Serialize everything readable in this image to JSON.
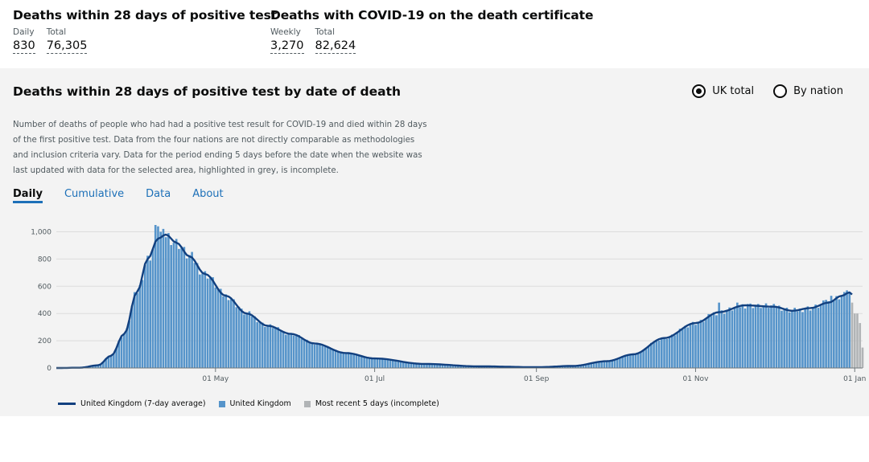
{
  "headlines": {
    "deaths28": {
      "title": "Deaths within 28 days of positive test",
      "daily_label": "Daily",
      "daily_value": "830",
      "total_label": "Total",
      "total_value": "76,305"
    },
    "certificate": {
      "title": "Deaths with COVID-19 on the death certificate",
      "weekly_label": "Weekly",
      "weekly_value": "3,270",
      "total_label": "Total",
      "total_value": "82,624"
    }
  },
  "card": {
    "title": "Deaths within 28 days of positive test by date of death",
    "radio_uk": "UK total",
    "radio_nation": "By nation",
    "description": "Number of deaths of people who had had a positive test result for COVID-19 and died within 28 days of the first positive test. Data from the four nations are not directly comparable as methodologies and inclusion criteria vary. Data for the period ending 5 days before the date when the website was last updated with data for the selected area, highlighted in grey, is incomplete.",
    "tabs": [
      "Daily",
      "Cumulative",
      "Data",
      "About"
    ],
    "active_tab": "Daily"
  },
  "colors": {
    "bar": "#5694ca",
    "line": "#12407f",
    "incomplete": "#b1b4b6",
    "link": "#1d70b8"
  },
  "chart_data": {
    "type": "bar",
    "start_date": "2020-03-01",
    "end_date": "2021-01-04",
    "y_ticks": [
      0,
      200,
      400,
      600,
      800,
      1000
    ],
    "y_tick_labels": [
      "0",
      "200",
      "400",
      "600",
      "800",
      "1,000"
    ],
    "ylim": [
      0,
      1050
    ],
    "x_ticks": [
      {
        "date": "2020-05-01",
        "label": "01 May"
      },
      {
        "date": "2020-07-01",
        "label": "01 Jul"
      },
      {
        "date": "2020-09-01",
        "label": "01 Sep"
      },
      {
        "date": "2020-11-01",
        "label": "01 Nov"
      },
      {
        "date": "2021-01-01",
        "label": "01 Jan"
      }
    ],
    "average_keypoints": [
      {
        "date": "2020-03-01",
        "value": 0
      },
      {
        "date": "2020-03-10",
        "value": 2
      },
      {
        "date": "2020-03-17",
        "value": 20
      },
      {
        "date": "2020-03-22",
        "value": 90
      },
      {
        "date": "2020-03-27",
        "value": 250
      },
      {
        "date": "2020-04-01",
        "value": 560
      },
      {
        "date": "2020-04-05",
        "value": 800
      },
      {
        "date": "2020-04-09",
        "value": 950
      },
      {
        "date": "2020-04-12",
        "value": 980
      },
      {
        "date": "2020-04-16",
        "value": 920
      },
      {
        "date": "2020-04-21",
        "value": 820
      },
      {
        "date": "2020-04-27",
        "value": 690
      },
      {
        "date": "2020-05-05",
        "value": 530
      },
      {
        "date": "2020-05-13",
        "value": 400
      },
      {
        "date": "2020-05-21",
        "value": 310
      },
      {
        "date": "2020-05-30",
        "value": 250
      },
      {
        "date": "2020-06-08",
        "value": 180
      },
      {
        "date": "2020-06-20",
        "value": 110
      },
      {
        "date": "2020-07-01",
        "value": 70
      },
      {
        "date": "2020-07-20",
        "value": 30
      },
      {
        "date": "2020-08-10",
        "value": 12
      },
      {
        "date": "2020-09-01",
        "value": 6
      },
      {
        "date": "2020-09-15",
        "value": 15
      },
      {
        "date": "2020-09-28",
        "value": 50
      },
      {
        "date": "2020-10-08",
        "value": 100
      },
      {
        "date": "2020-10-20",
        "value": 220
      },
      {
        "date": "2020-11-01",
        "value": 330
      },
      {
        "date": "2020-11-10",
        "value": 410
      },
      {
        "date": "2020-11-20",
        "value": 460
      },
      {
        "date": "2020-12-01",
        "value": 450
      },
      {
        "date": "2020-12-08",
        "value": 420
      },
      {
        "date": "2020-12-15",
        "value": 440
      },
      {
        "date": "2020-12-22",
        "value": 480
      },
      {
        "date": "2020-12-27",
        "value": 530
      },
      {
        "date": "2020-12-30",
        "value": 555
      },
      {
        "date": "2020-12-31",
        "value": 540
      }
    ],
    "bar_spikes": [
      {
        "date": "2020-04-08",
        "value": 1070
      },
      {
        "date": "2020-04-09",
        "value": 1040
      },
      {
        "date": "2020-04-10",
        "value": 1000
      },
      {
        "date": "2020-05-10",
        "value": 450
      },
      {
        "date": "2020-11-10",
        "value": 480
      },
      {
        "date": "2020-11-17",
        "value": 480
      },
      {
        "date": "2020-11-21",
        "value": 470
      },
      {
        "date": "2020-11-25",
        "value": 470
      },
      {
        "date": "2020-12-01",
        "value": 470
      },
      {
        "date": "2020-12-21",
        "value": 500
      },
      {
        "date": "2020-12-23",
        "value": 530
      },
      {
        "date": "2020-12-29",
        "value": 570
      },
      {
        "date": "2020-12-30",
        "value": 560
      }
    ],
    "incomplete": [
      {
        "date": "2020-12-31",
        "value": 480
      },
      {
        "date": "2021-01-01",
        "value": 400
      },
      {
        "date": "2021-01-02",
        "value": 400
      },
      {
        "date": "2021-01-03",
        "value": 330
      },
      {
        "date": "2021-01-04",
        "value": 150
      }
    ],
    "legend": [
      {
        "label": "United Kingdom (7-day average)",
        "kind": "line"
      },
      {
        "label": "United Kingdom",
        "kind": "bar"
      },
      {
        "label": "Most recent 5 days (incomplete)",
        "kind": "incomplete"
      }
    ]
  }
}
